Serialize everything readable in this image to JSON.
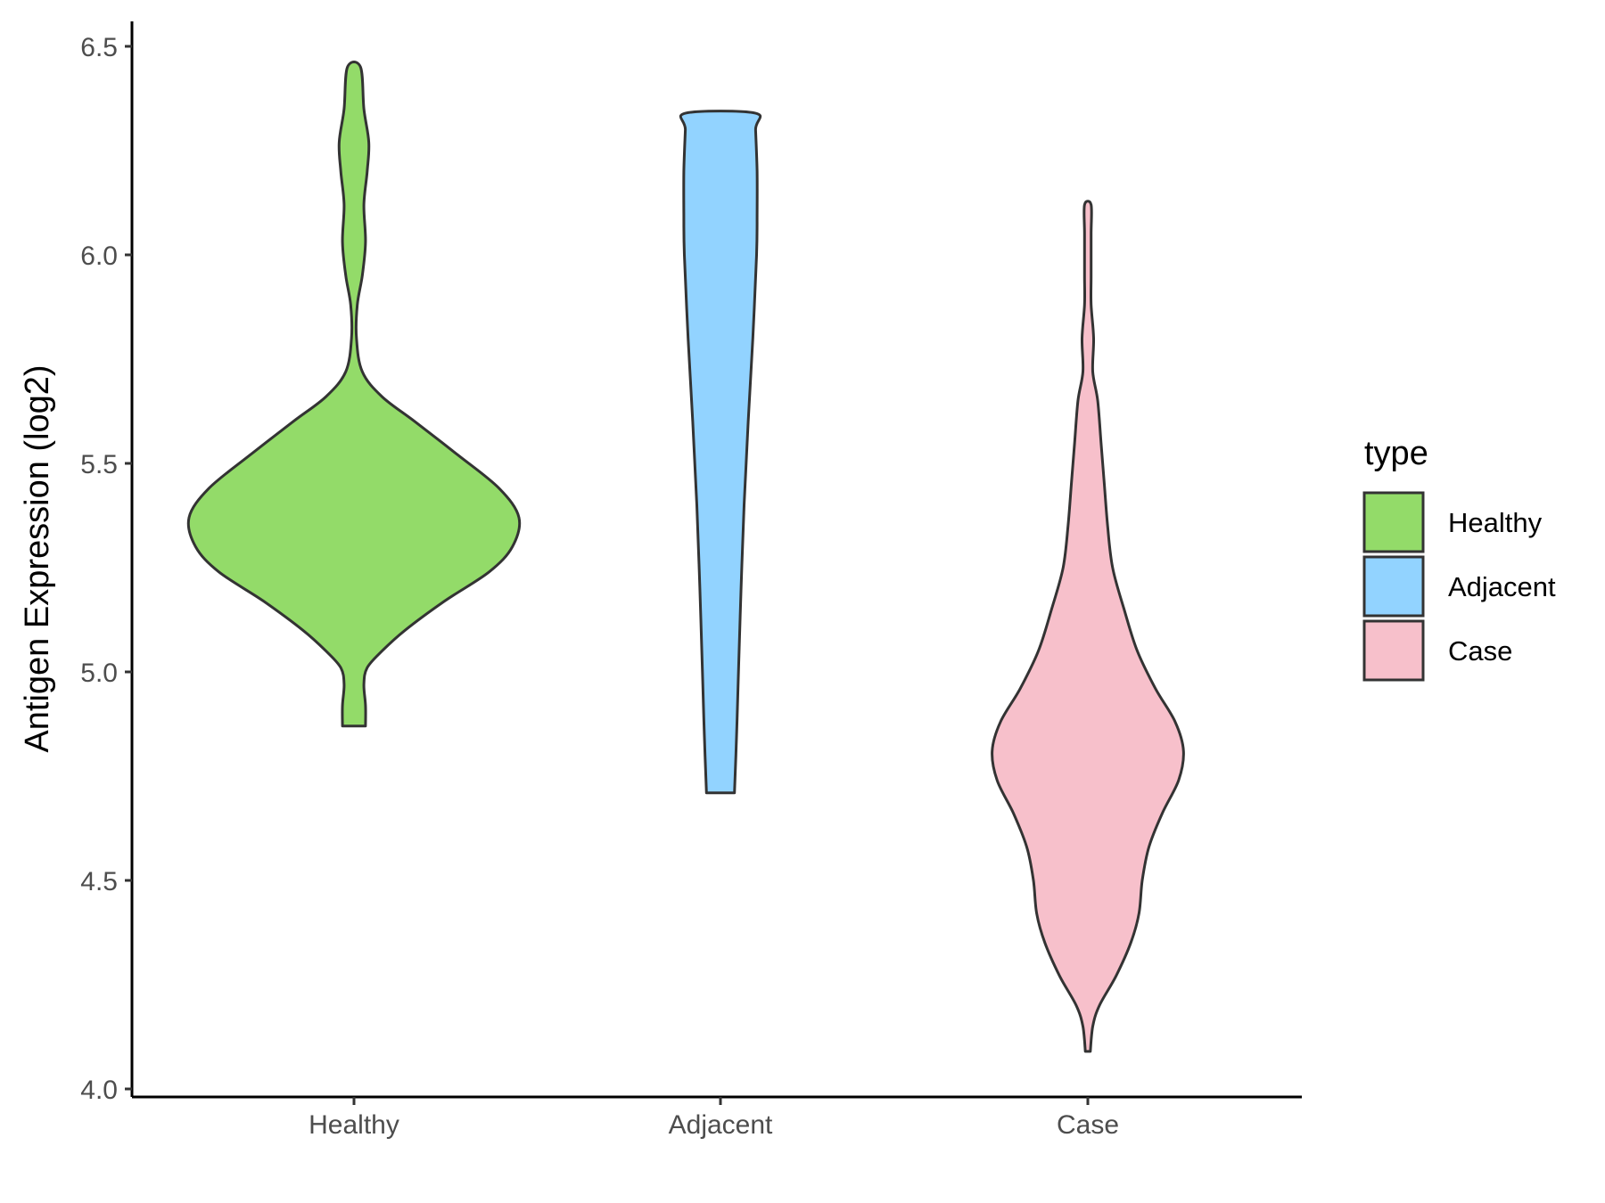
{
  "chart_data": {
    "type": "violin",
    "title": "",
    "xlabel": "",
    "ylabel": "Antigen Expression (log2)",
    "ylim": [
      4.0,
      6.5
    ],
    "yticks": [
      "4.0",
      "4.5",
      "5.0",
      "5.5",
      "6.0",
      "6.5"
    ],
    "categories": [
      "Healthy",
      "Adjacent",
      "Case"
    ],
    "grid": false,
    "legend": {
      "title": "type",
      "position": "right",
      "entries": [
        "Healthy",
        "Adjacent",
        "Case"
      ]
    },
    "series": [
      {
        "name": "Healthy",
        "color": "#93DB69",
        "min": 4.87,
        "max": 6.45,
        "density_profile": [
          [
            4.87,
            0.07
          ],
          [
            4.92,
            0.07
          ],
          [
            4.97,
            0.06
          ],
          [
            5.01,
            0.08
          ],
          [
            5.05,
            0.17
          ],
          [
            5.1,
            0.31
          ],
          [
            5.17,
            0.55
          ],
          [
            5.24,
            0.82
          ],
          [
            5.3,
            0.96
          ],
          [
            5.37,
            1.0
          ],
          [
            5.44,
            0.88
          ],
          [
            5.52,
            0.63
          ],
          [
            5.6,
            0.37
          ],
          [
            5.66,
            0.17
          ],
          [
            5.72,
            0.05
          ],
          [
            5.8,
            0.015
          ],
          [
            5.88,
            0.02
          ],
          [
            5.95,
            0.05
          ],
          [
            6.03,
            0.07
          ],
          [
            6.12,
            0.06
          ],
          [
            6.2,
            0.08
          ],
          [
            6.27,
            0.09
          ],
          [
            6.35,
            0.06
          ],
          [
            6.45,
            0.04
          ]
        ]
      },
      {
        "name": "Adjacent",
        "color": "#92D3FF",
        "min": 4.71,
        "max": 6.34,
        "density_profile": [
          [
            4.71,
            0.085
          ],
          [
            4.85,
            0.098
          ],
          [
            5.0,
            0.109
          ],
          [
            5.2,
            0.125
          ],
          [
            5.4,
            0.143
          ],
          [
            5.6,
            0.168
          ],
          [
            5.8,
            0.196
          ],
          [
            6.0,
            0.219
          ],
          [
            6.1,
            0.222
          ],
          [
            6.2,
            0.222
          ],
          [
            6.3,
            0.213
          ],
          [
            6.34,
            0.21
          ]
        ]
      },
      {
        "name": "Case",
        "color": "#F7C0CB",
        "min": 4.09,
        "max": 6.12,
        "density_profile": [
          [
            4.09,
            0.015
          ],
          [
            4.15,
            0.03
          ],
          [
            4.2,
            0.07
          ],
          [
            4.27,
            0.17
          ],
          [
            4.35,
            0.26
          ],
          [
            4.42,
            0.31
          ],
          [
            4.5,
            0.33
          ],
          [
            4.58,
            0.37
          ],
          [
            4.66,
            0.45
          ],
          [
            4.74,
            0.55
          ],
          [
            4.81,
            0.58
          ],
          [
            4.88,
            0.53
          ],
          [
            4.96,
            0.41
          ],
          [
            5.05,
            0.3
          ],
          [
            5.15,
            0.22
          ],
          [
            5.25,
            0.15
          ],
          [
            5.35,
            0.12
          ],
          [
            5.45,
            0.1
          ],
          [
            5.55,
            0.08
          ],
          [
            5.65,
            0.06
          ],
          [
            5.72,
            0.03
          ],
          [
            5.8,
            0.035
          ],
          [
            5.88,
            0.02
          ],
          [
            5.95,
            0.02
          ],
          [
            6.05,
            0.02
          ],
          [
            6.12,
            0.02
          ]
        ]
      }
    ]
  }
}
